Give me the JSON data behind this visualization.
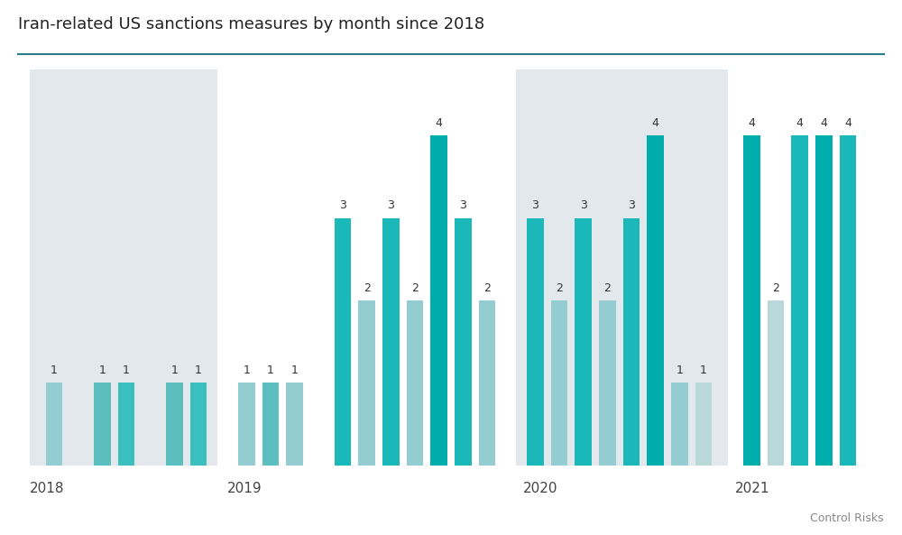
{
  "title": "Iran-related US sanctions measures by month since 2018",
  "watermark": "Control Risks",
  "background_color": "#ffffff",
  "shaded_bg_color": "#e2e8ec",
  "title_line_color": "#2a7a8c",
  "bar_data": [
    {
      "x": 1,
      "value": 1,
      "color": "#93cdd1"
    },
    {
      "x": 3,
      "value": 1,
      "color": "#5bbfc0"
    },
    {
      "x": 4,
      "value": 1,
      "color": "#3bbfbf"
    },
    {
      "x": 6,
      "value": 1,
      "color": "#5bbfc0"
    },
    {
      "x": 7,
      "value": 1,
      "color": "#3bbfbf"
    },
    {
      "x": 9,
      "value": 1,
      "color": "#93cdd1"
    },
    {
      "x": 10,
      "value": 1,
      "color": "#5bbfc0"
    },
    {
      "x": 11,
      "value": 1,
      "color": "#93cdd1"
    },
    {
      "x": 13,
      "value": 3,
      "color": "#1ab8b8"
    },
    {
      "x": 14,
      "value": 2,
      "color": "#93cdd1"
    },
    {
      "x": 15,
      "value": 3,
      "color": "#1ab8b8"
    },
    {
      "x": 16,
      "value": 2,
      "color": "#93cdd1"
    },
    {
      "x": 17,
      "value": 4,
      "color": "#00adad"
    },
    {
      "x": 18,
      "value": 3,
      "color": "#1ab8b8"
    },
    {
      "x": 19,
      "value": 2,
      "color": "#93cdd1"
    },
    {
      "x": 21,
      "value": 3,
      "color": "#1ab8b8"
    },
    {
      "x": 22,
      "value": 2,
      "color": "#93cdd1"
    },
    {
      "x": 23,
      "value": 3,
      "color": "#1ab8b8"
    },
    {
      "x": 24,
      "value": 2,
      "color": "#93cdd1"
    },
    {
      "x": 25,
      "value": 3,
      "color": "#1ab8b8"
    },
    {
      "x": 26,
      "value": 4,
      "color": "#00adad"
    },
    {
      "x": 27,
      "value": 1,
      "color": "#93cdd1"
    },
    {
      "x": 28,
      "value": 1,
      "color": "#b8d8da"
    },
    {
      "x": 30,
      "value": 4,
      "color": "#00adad"
    },
    {
      "x": 31,
      "value": 2,
      "color": "#b8d8da"
    },
    {
      "x": 32,
      "value": 4,
      "color": "#1ab8b8"
    },
    {
      "x": 33,
      "value": 4,
      "color": "#00adad"
    },
    {
      "x": 34,
      "value": 4,
      "color": "#1ab8b8"
    }
  ],
  "shaded_regions": [
    {
      "start": 0.0,
      "end": 7.8
    },
    {
      "start": 20.2,
      "end": 29.0
    }
  ],
  "year_labels": [
    {
      "label": "2018",
      "x": 0.0
    },
    {
      "label": "2019",
      "x": 8.2
    },
    {
      "label": "2020",
      "x": 20.5
    },
    {
      "label": "2021",
      "x": 29.3
    }
  ],
  "ylim": [
    0,
    4.8
  ],
  "xlim": [
    -0.5,
    35.5
  ],
  "bar_width": 0.7,
  "figsize": [
    10.0,
    5.93
  ],
  "dpi": 100
}
